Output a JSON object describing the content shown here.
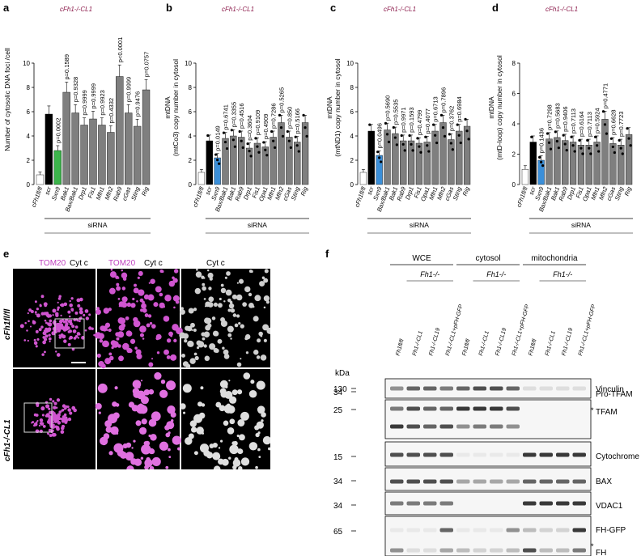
{
  "panels": [
    "a",
    "b",
    "c",
    "d",
    "e",
    "f"
  ],
  "genotype_title": "cFh1-/-CL1",
  "siRNA_label": "siRNA",
  "chart_data": [
    {
      "type": "bar",
      "panel": "a",
      "ylabel": "Number of cytosolic DNA foci /cell",
      "ylim": [
        0,
        10
      ],
      "yticks": [
        0,
        2,
        4,
        6,
        8,
        10
      ],
      "categories": [
        "cFh1fl/fl",
        "scr",
        "Sxn9",
        "Bak1",
        "Bax/Bak1",
        "Drp1",
        "Fis1",
        "Mfn1",
        "Mfn2",
        "Rab9",
        "cGas",
        "Sting",
        "Rig"
      ],
      "values": [
        0.8,
        5.8,
        2.8,
        7.6,
        5.9,
        4.9,
        5.4,
        4.9,
        4.3,
        8.9,
        5.9,
        4.8,
        7.8
      ],
      "colors": [
        "#ffffff",
        "#000000",
        "#3cb44b",
        "#7f7f7f",
        "#7f7f7f",
        "#7f7f7f",
        "#7f7f7f",
        "#7f7f7f",
        "#7f7f7f",
        "#7f7f7f",
        "#7f7f7f",
        "#7f7f7f",
        "#7f7f7f"
      ],
      "pvalues": [
        "",
        "",
        "p=0.0002",
        "p=0.1589",
        "p=0.9328",
        "p=0.9999",
        "p=0.9999",
        "p=0.9923",
        "p=0.4332",
        "p<0.0001",
        "p=0.9999",
        "p=0.9476",
        "p=0.0757"
      ]
    },
    {
      "type": "bar",
      "panel": "b",
      "ylabel": "mtDNA (mtCo3) copy number in cytosol (fold change vs control)",
      "ylim": [
        0,
        10
      ],
      "yticks": [
        0,
        2,
        4,
        6,
        8,
        10
      ],
      "categories": [
        "cFh1fl/fl",
        "scr",
        "Sxn9",
        "Bax/Bak1",
        "Bak1",
        "Rab9",
        "Drp1",
        "Fis1",
        "Opa1",
        "Mfn1",
        "Mfn2",
        "cGas",
        "Sting",
        "Rig"
      ],
      "values": [
        1.0,
        3.6,
        2.2,
        3.8,
        4.0,
        3.9,
        3.0,
        3.4,
        3.1,
        3.9,
        5.1,
        3.9,
        3.5,
        5.1
      ],
      "colors": [
        "#ffffff",
        "#000000",
        "#3b8fd9",
        "#7f7f7f",
        "#7f7f7f",
        "#7f7f7f",
        "#7f7f7f",
        "#7f7f7f",
        "#7f7f7f",
        "#7f7f7f",
        "#7f7f7f",
        "#7f7f7f",
        "#7f7f7f",
        "#7f7f7f"
      ],
      "pvalues": [
        "",
        "",
        "p=0.0149",
        "p=0.6741",
        "p=0.3355",
        "p=0.4516",
        "p=0.3604",
        "p=0.9109",
        "p=0.4909",
        "p=0.7286",
        "p=0.5265",
        "p=0.850",
        "p=0.5166",
        ""
      ]
    },
    {
      "type": "bar",
      "panel": "c",
      "ylabel": "mtDNA (mtND1) copy number in cytosol (fold change vs control)",
      "ylim": [
        0,
        10
      ],
      "yticks": [
        0,
        2,
        4,
        6,
        8,
        10
      ],
      "categories": [
        "cFh1fl/fl",
        "scr",
        "Sxn9",
        "Bax/Bak1",
        "Bak1",
        "Rab9",
        "Drp1",
        "Fis1",
        "Opa1",
        "Mfn1",
        "Mfn2",
        "cGas",
        "Sting",
        "Rig"
      ],
      "values": [
        1.0,
        4.4,
        2.4,
        4.5,
        4.2,
        3.6,
        3.6,
        3.4,
        3.5,
        4.4,
        5.1,
        3.7,
        4.4,
        4.8
      ],
      "colors": [
        "#ffffff",
        "#000000",
        "#3b8fd9",
        "#7f7f7f",
        "#7f7f7f",
        "#7f7f7f",
        "#7f7f7f",
        "#7f7f7f",
        "#7f7f7f",
        "#7f7f7f",
        "#7f7f7f",
        "#7f7f7f",
        "#7f7f7f",
        "#7f7f7f"
      ],
      "pvalues": [
        "",
        "",
        "p=0.0496",
        "p=0.5690",
        "p=0.5535",
        "p=0.9971",
        "p=0.1593",
        "p=0.4799",
        "p=0.4077",
        "p=0.6713",
        "p=0.7896",
        "p=0.3762",
        "p=0.6984",
        ""
      ]
    },
    {
      "type": "bar",
      "panel": "d",
      "ylabel": "mtDNA (mtD-loop) copy number in cytosol (fold change vs control)",
      "ylim": [
        0,
        8
      ],
      "yticks": [
        0,
        2,
        4,
        6,
        8
      ],
      "categories": [
        "cFh1fl/fl",
        "scr",
        "Sxn9",
        "Bax/Bak1",
        "Bak1",
        "Rab9",
        "Drp1",
        "Fis1",
        "Opa1",
        "Mfn1",
        "Mfn2",
        "cGas",
        "Sting",
        "Rig"
      ],
      "values": [
        1.0,
        2.8,
        1.6,
        3.0,
        3.1,
        2.9,
        2.8,
        2.6,
        2.6,
        2.8,
        4.3,
        2.7,
        2.6,
        3.3
      ],
      "colors": [
        "#ffffff",
        "#000000",
        "#3b8fd9",
        "#7f7f7f",
        "#7f7f7f",
        "#7f7f7f",
        "#7f7f7f",
        "#7f7f7f",
        "#7f7f7f",
        "#7f7f7f",
        "#7f7f7f",
        "#7f7f7f",
        "#7f7f7f",
        "#7f7f7f"
      ],
      "pvalues": [
        "",
        "",
        "p=0.1436",
        "p=0.7298",
        "p=0.5683",
        "p=0.9406",
        "p=0.7113",
        "p=0.6164",
        "p=0.7113",
        "p=0.5924",
        "p=0.4771",
        "p=0.6628",
        "p=0.7723",
        ""
      ]
    }
  ],
  "panel_e": {
    "col_labels": [
      "TOM20",
      "Cyt c",
      "TOM20",
      "Cyt c",
      "Cyt c"
    ],
    "row_labels": [
      "cFh1fl/fl",
      "cFh1-/-CL1"
    ]
  },
  "panel_f": {
    "groups": [
      "WCE",
      "cytosol",
      "mitochondria"
    ],
    "subgroup": "Fh1-/-",
    "kda_label": "kDa",
    "lanes": [
      "Fh1fl/fl",
      "Fh1-/-CL1",
      "Fh1-/-CL19",
      "Fh1-/-CL1+pFH-GFP",
      "Fh1fl/fl",
      "Fh1-/-CL1",
      "Fh1-/-CL19",
      "Fh1-/-CL1+pFH-GFP",
      "Fh1fl/fl",
      "Fh1-/-CL1",
      "Fh1-/-CL19",
      "Fh1-/-CL1+pFH-GFP"
    ],
    "blots": [
      {
        "label": "Vinculin",
        "kda": "130"
      },
      {
        "label": "Pro-TFAM",
        "kda": "34"
      },
      {
        "label": "TFAM",
        "kda": "25"
      },
      {
        "label": "Cytochrome c",
        "kda": "15"
      },
      {
        "label": "BAX",
        "kda": "34"
      },
      {
        "label": "VDAC1",
        "kda": "34"
      },
      {
        "label": "FH-GFP",
        "kda": "65"
      },
      {
        "label": "FH",
        "kda": ""
      }
    ]
  }
}
